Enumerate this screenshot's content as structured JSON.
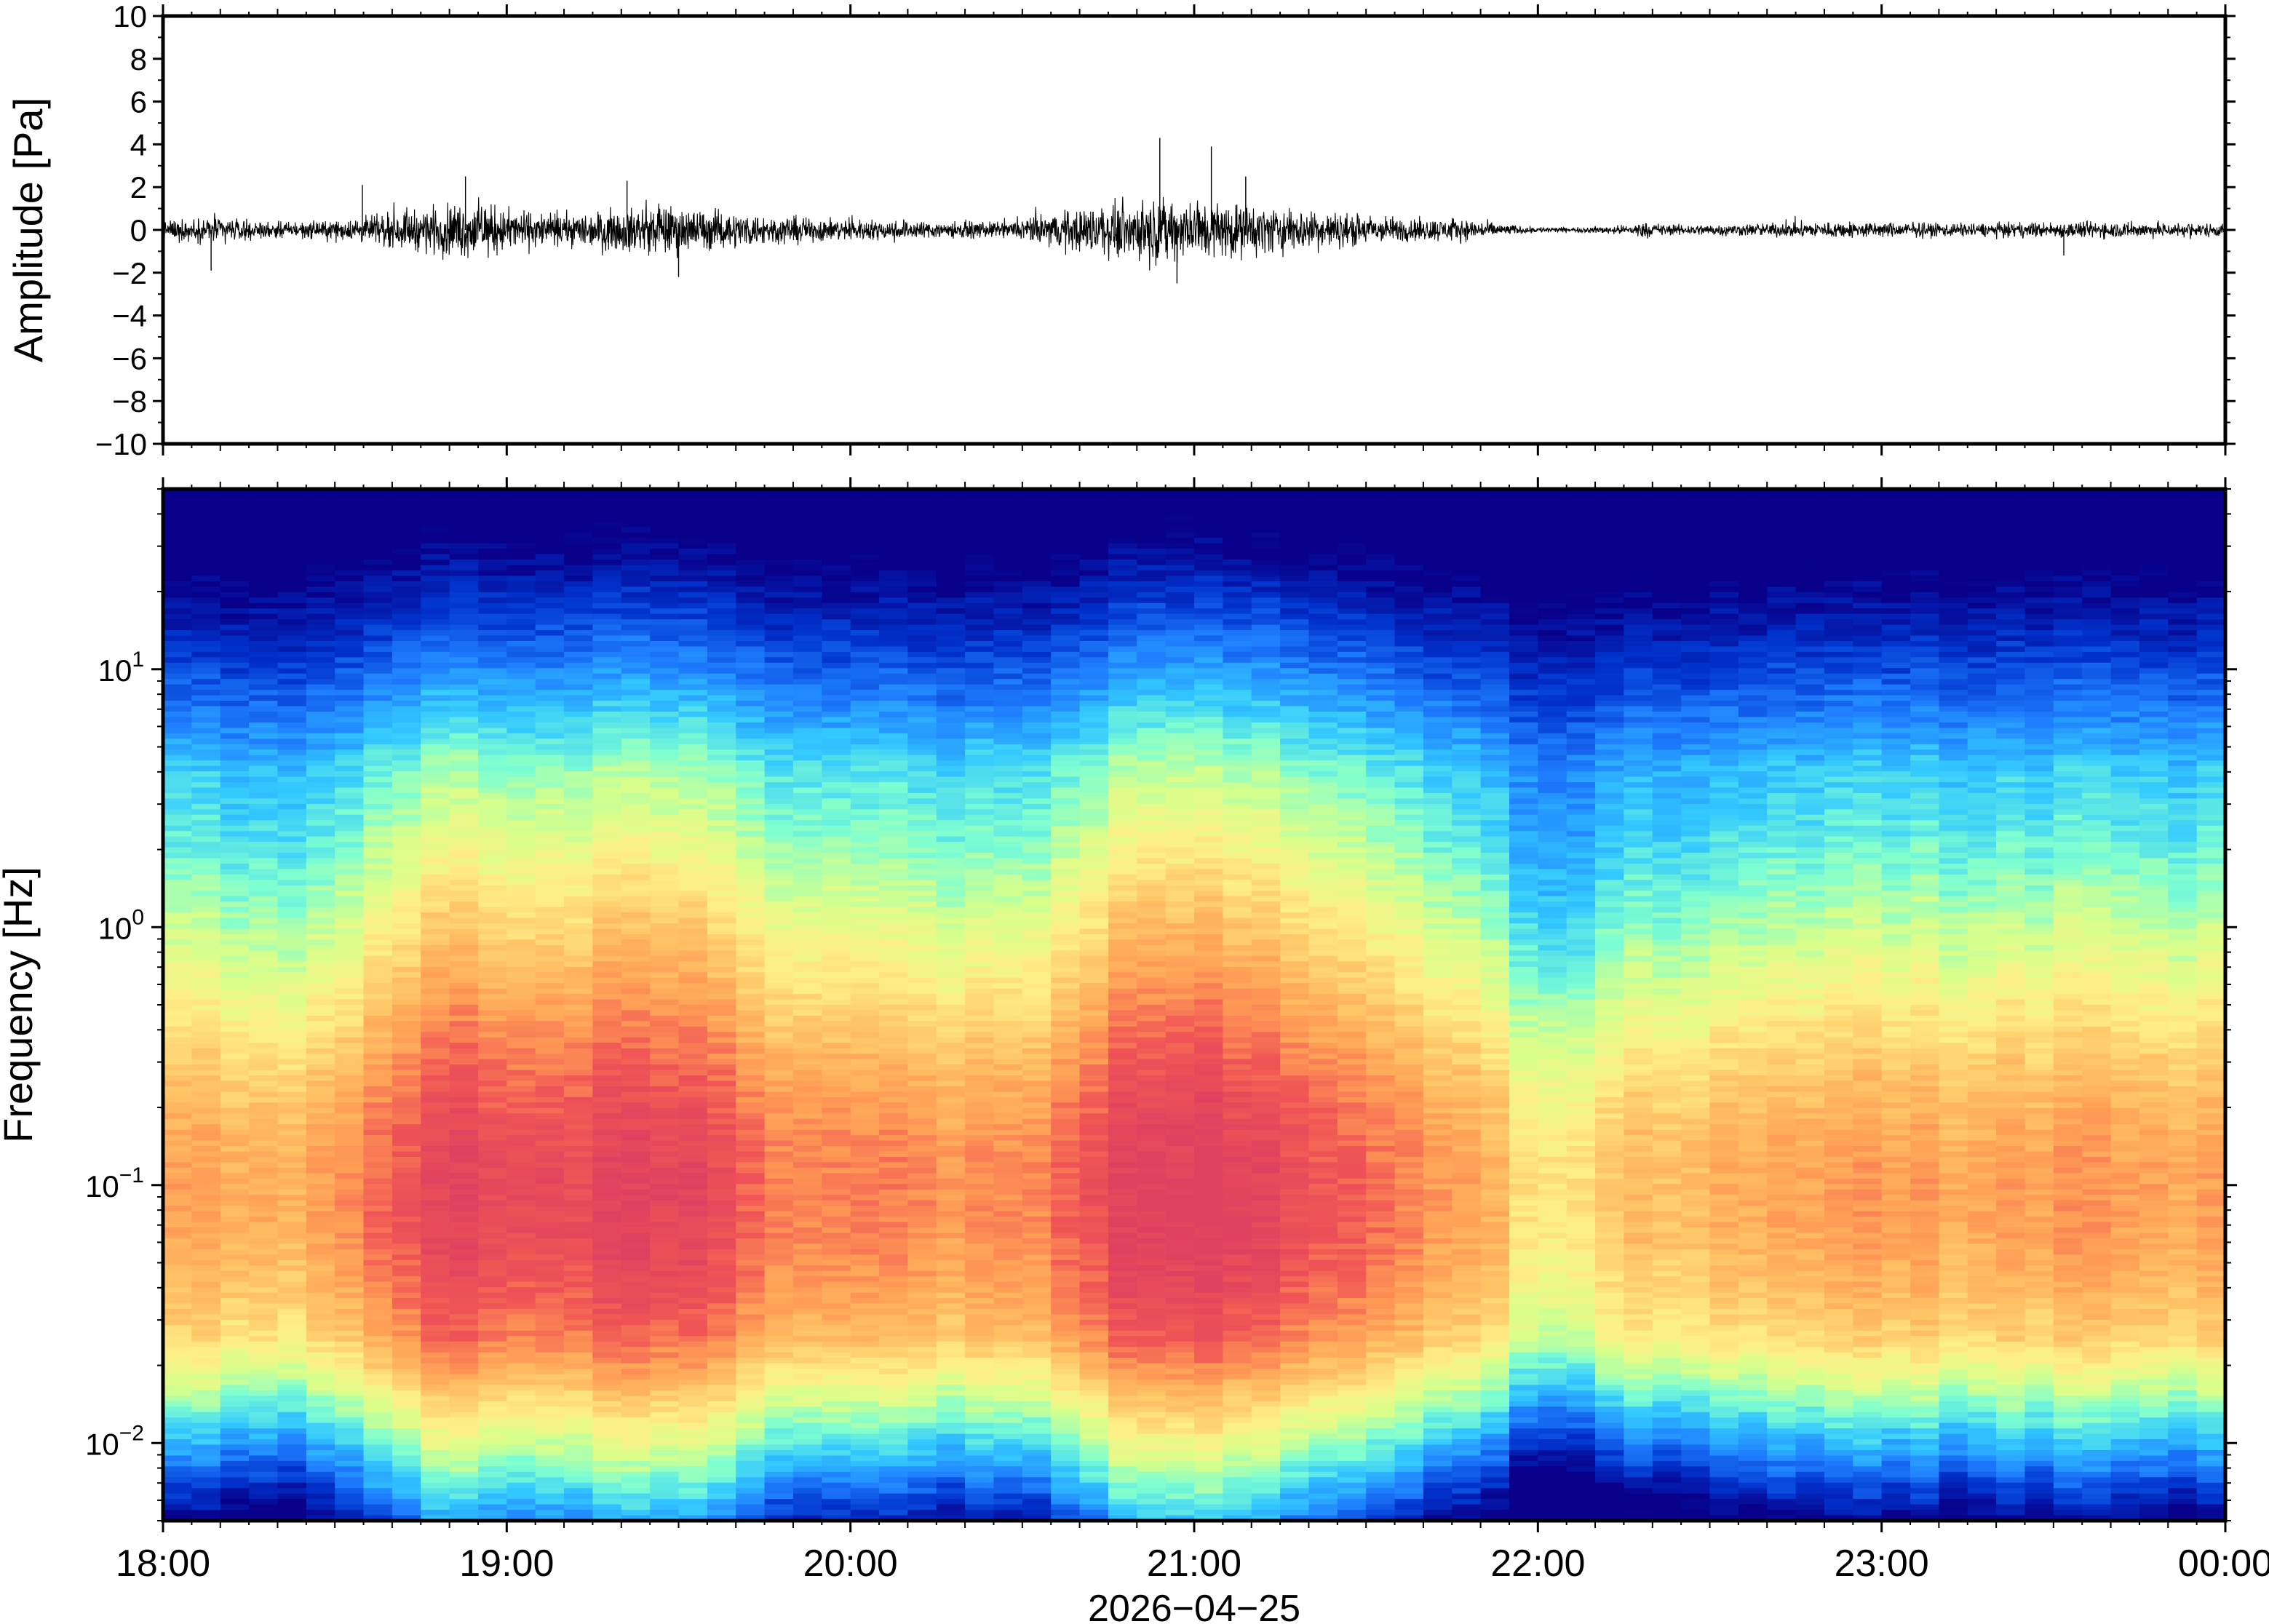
{
  "chart_data": [
    {
      "type": "line",
      "panel": "waveform",
      "ylabel": "Amplitude [Pa]",
      "ylim": [
        -10,
        10
      ],
      "yticks": [
        10,
        8,
        6,
        4,
        2,
        0,
        -2,
        -4,
        -6,
        -8,
        -10
      ],
      "ytick_labels": [
        "10",
        "8",
        "6",
        "4",
        "2",
        "0",
        "−2",
        "−4",
        "−6",
        "−8",
        "−10"
      ],
      "xlim_hours": [
        18,
        24
      ],
      "grid": false,
      "envelope": {
        "hours": [
          18.0,
          18.15,
          18.3,
          18.5,
          18.6,
          18.7,
          18.8,
          18.9,
          19.0,
          19.15,
          19.3,
          19.45,
          19.6,
          19.8,
          20.0,
          20.2,
          20.45,
          20.6,
          20.7,
          20.8,
          20.9,
          21.0,
          21.15,
          21.3,
          21.5,
          21.6,
          21.8,
          21.95,
          22.1,
          22.25,
          22.3,
          22.4,
          22.6,
          22.75,
          22.9,
          23.0,
          23.3,
          23.6,
          23.8,
          24.0
        ],
        "amplitude": [
          0.6,
          0.9,
          0.5,
          0.6,
          0.9,
          1.2,
          1.6,
          1.9,
          1.4,
          1.0,
          1.3,
          1.7,
          1.3,
          0.9,
          0.7,
          0.6,
          0.5,
          1.2,
          1.6,
          1.8,
          2.0,
          2.1,
          1.7,
          1.4,
          1.0,
          0.8,
          0.7,
          0.25,
          0.15,
          0.3,
          0.5,
          0.35,
          0.4,
          0.5,
          0.55,
          0.5,
          0.45,
          0.55,
          0.5,
          0.45
        ]
      },
      "spikes": [
        {
          "hour": 18.14,
          "value": -1.9
        },
        {
          "hour": 18.58,
          "value": 2.1
        },
        {
          "hour": 18.88,
          "value": 2.5
        },
        {
          "hour": 19.35,
          "value": 2.3
        },
        {
          "hour": 19.5,
          "value": -2.2
        },
        {
          "hour": 20.9,
          "value": 4.3
        },
        {
          "hour": 21.05,
          "value": 3.9
        },
        {
          "hour": 20.95,
          "value": -2.5
        },
        {
          "hour": 21.15,
          "value": 2.5
        },
        {
          "hour": 23.53,
          "value": -1.2
        }
      ]
    },
    {
      "type": "heatmap",
      "panel": "spectrogram",
      "ylabel": "Frequency [Hz]",
      "yscale": "log",
      "ylim": [
        0.005,
        50
      ],
      "yticks": [
        {
          "base": "10",
          "exp": "1",
          "value": 10
        },
        {
          "base": "10",
          "exp": "0",
          "value": 1
        },
        {
          "base": "10",
          "exp": "−1",
          "value": 0.1
        },
        {
          "base": "10",
          "exp": "−2",
          "value": 0.01
        }
      ],
      "xlim_hours": [
        18,
        24
      ],
      "colormap": [
        "#08008a",
        "#0033cc",
        "#1f7fff",
        "#33c9ff",
        "#7fffd0",
        "#d8ff8a",
        "#ffee88",
        "#ffc466",
        "#ff9a55",
        "#f05555",
        "#e04060"
      ],
      "activity_by_hour": {
        "hours": [
          18.0,
          18.15,
          18.3,
          18.5,
          18.6,
          18.75,
          18.9,
          19.0,
          19.2,
          19.45,
          19.6,
          19.8,
          20.0,
          20.2,
          20.5,
          20.65,
          20.8,
          21.0,
          21.2,
          21.4,
          21.6,
          21.85,
          21.95,
          22.15,
          22.3,
          22.45,
          22.7,
          23.0,
          23.3,
          23.6,
          24.0
        ],
        "level": [
          0.55,
          0.4,
          0.4,
          0.45,
          0.7,
          0.85,
          0.95,
          0.75,
          0.85,
          0.95,
          0.8,
          0.65,
          0.55,
          0.55,
          0.5,
          0.8,
          0.95,
          1.0,
          0.9,
          0.75,
          0.6,
          0.45,
          0.1,
          0.15,
          0.35,
          0.3,
          0.45,
          0.5,
          0.45,
          0.5,
          0.45
        ]
      }
    }
  ],
  "xaxis": {
    "tick_labels": [
      "18:00",
      "19:00",
      "20:00",
      "21:00",
      "22:00",
      "23:00",
      "00:00"
    ],
    "date_label": "2026−04−25"
  }
}
